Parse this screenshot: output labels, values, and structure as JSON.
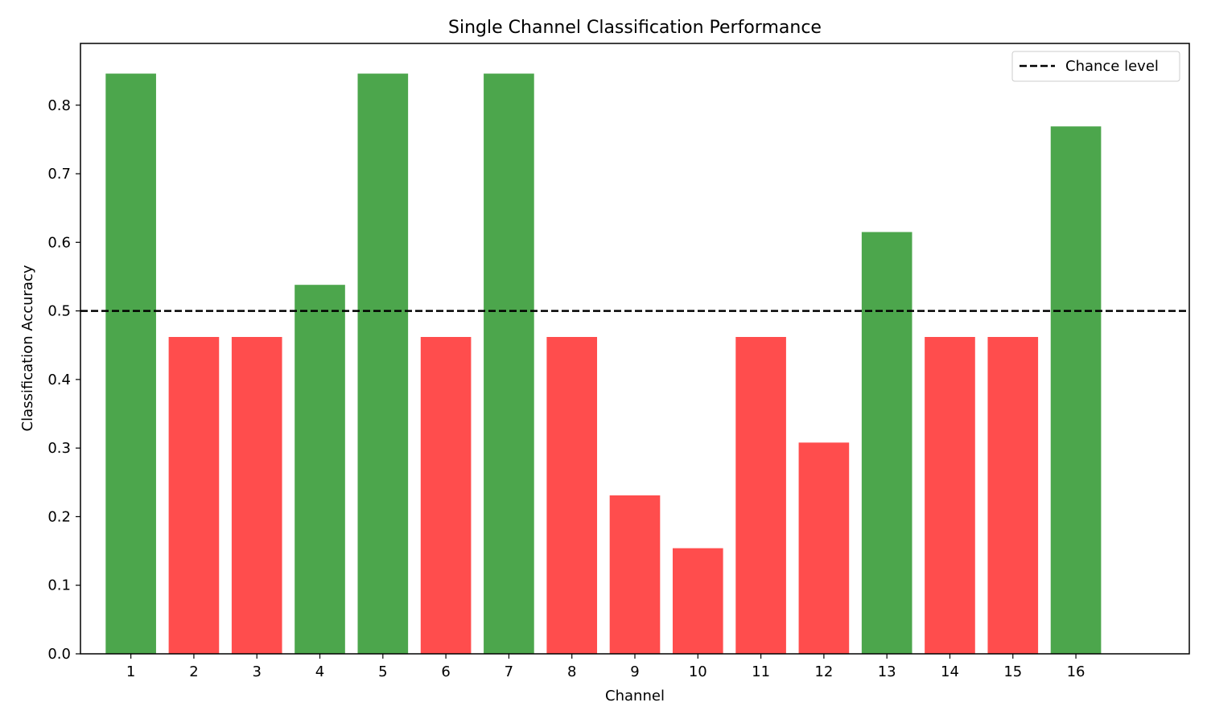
{
  "chart_data": {
    "type": "bar",
    "title": "Single Channel Classification Performance",
    "xlabel": "Channel",
    "ylabel": "Classification Accuracy",
    "categories": [
      "1",
      "2",
      "3",
      "4",
      "5",
      "6",
      "7",
      "8",
      "9",
      "10",
      "11",
      "12",
      "13",
      "14",
      "15",
      "16"
    ],
    "values": [
      0.846,
      0.462,
      0.462,
      0.538,
      0.846,
      0.462,
      0.846,
      0.462,
      0.231,
      0.154,
      0.462,
      0.308,
      0.615,
      0.462,
      0.462,
      0.769
    ],
    "chance_level": 0.5,
    "ylim": [
      0,
      0.89
    ],
    "xlim": [
      0.2,
      17.8
    ],
    "yticks": [
      "0.0",
      "0.1",
      "0.2",
      "0.3",
      "0.4",
      "0.5",
      "0.6",
      "0.7",
      "0.8"
    ],
    "above_chance_color": "#4ca64c",
    "below_chance_color": "#ff4d4d",
    "chance_line_color": "#000000",
    "grid": false,
    "legend": {
      "placement": "top-right",
      "entries": [
        {
          "label": "Chance level",
          "style": "dashed",
          "color": "#000000"
        }
      ]
    }
  }
}
